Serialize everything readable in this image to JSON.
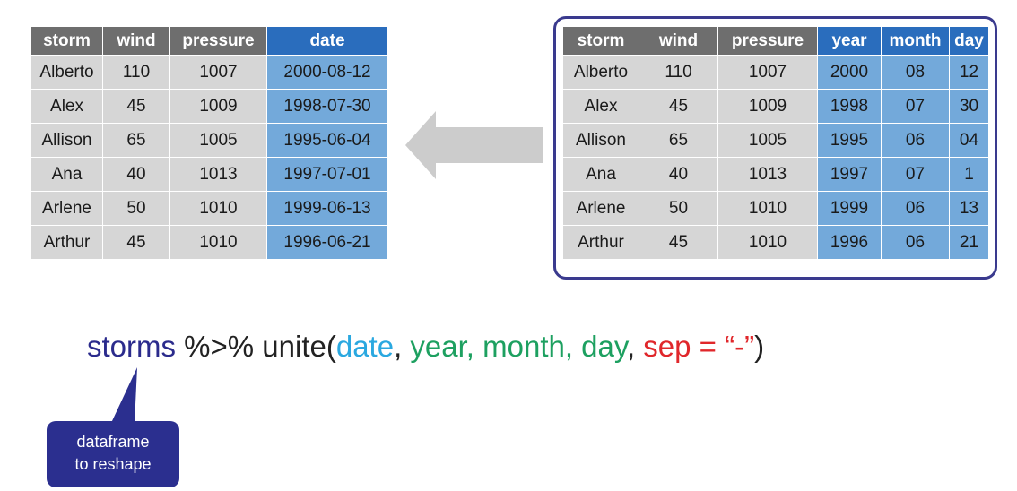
{
  "left_table": {
    "headers": [
      {
        "label": "storm",
        "color": "gray"
      },
      {
        "label": "wind",
        "color": "gray"
      },
      {
        "label": "pressure",
        "color": "gray"
      },
      {
        "label": "date",
        "color": "blue"
      }
    ],
    "rows": [
      [
        "Alberto",
        "110",
        "1007",
        "2000-08-12"
      ],
      [
        "Alex",
        "45",
        "1009",
        "1998-07-30"
      ],
      [
        "Allison",
        "65",
        "1005",
        "1995-06-04"
      ],
      [
        "Ana",
        "40",
        "1013",
        "1997-07-01"
      ],
      [
        "Arlene",
        "50",
        "1010",
        "1999-06-13"
      ],
      [
        "Arthur",
        "45",
        "1010",
        "1996-06-21"
      ]
    ]
  },
  "right_table": {
    "headers": [
      {
        "label": "storm",
        "color": "gray"
      },
      {
        "label": "wind",
        "color": "gray"
      },
      {
        "label": "pressure",
        "color": "gray"
      },
      {
        "label": "year",
        "color": "blue"
      },
      {
        "label": "month",
        "color": "blue"
      },
      {
        "label": "day",
        "color": "blue"
      }
    ],
    "rows": [
      [
        "Alberto",
        "110",
        "1007",
        "2000",
        "08",
        "12"
      ],
      [
        "Alex",
        "45",
        "1009",
        "1998",
        "07",
        "30"
      ],
      [
        "Allison",
        "65",
        "1005",
        "1995",
        "06",
        "04"
      ],
      [
        "Ana",
        "40",
        "1013",
        "1997",
        "07",
        "1"
      ],
      [
        "Arlene",
        "50",
        "1010",
        "1999",
        "06",
        "13"
      ],
      [
        "Arthur",
        "45",
        "1010",
        "1996",
        "06",
        "21"
      ]
    ]
  },
  "code": {
    "dataframe": "storms",
    "pipe_fn": " %>% unite(",
    "col_new": "date",
    "comma1": ", ",
    "col_year": "year, month, day",
    "comma2": ", ",
    "sep_arg": "sep = “-”",
    "close": ")"
  },
  "callout": {
    "line1": "dataframe",
    "line2": "to reshape"
  },
  "colors": {
    "header_gray": "#6e6e6e",
    "header_blue": "#2a6dbd",
    "cell_gray": "#d6d6d6",
    "cell_blue": "#73a9da",
    "frame": "#3a3a8e",
    "arrow": "#cccccc",
    "dataframe_text": "#2b2b8c",
    "new_col_text": "#2aa8e0",
    "input_cols_text": "#1da060",
    "sep_text": "#e0272b",
    "callout_bg": "#2b2f8f"
  }
}
